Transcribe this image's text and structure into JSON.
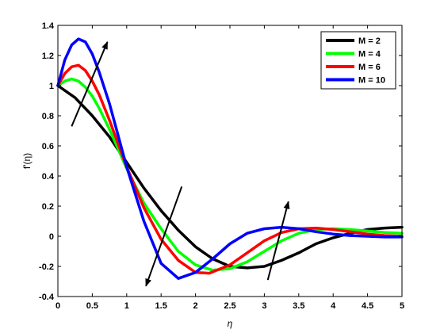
{
  "chart_data": {
    "type": "line",
    "xlabel": "η",
    "ylabel": "f'(η)",
    "xlim": [
      0,
      5
    ],
    "ylim": [
      -0.4,
      1.4
    ],
    "xticks": [
      "0",
      "0.5",
      "1",
      "1.5",
      "2",
      "2.5",
      "3",
      "3.5",
      "4",
      "4.5",
      "5"
    ],
    "yticks": [
      "-0.4",
      "-0.2",
      "0",
      "0.2",
      "0.4",
      "0.6",
      "0.8",
      "1",
      "1.2",
      "1.4"
    ],
    "legend_position": "top-right",
    "grid": false,
    "series": [
      {
        "name": "M = 2",
        "color": "#000000",
        "points": [
          [
            0,
            1.0
          ],
          [
            0.25,
            0.92
          ],
          [
            0.5,
            0.8
          ],
          [
            0.75,
            0.66
          ],
          [
            1.0,
            0.49
          ],
          [
            1.25,
            0.32
          ],
          [
            1.5,
            0.17
          ],
          [
            1.75,
            0.04
          ],
          [
            2.0,
            -0.07
          ],
          [
            2.25,
            -0.15
          ],
          [
            2.5,
            -0.2
          ],
          [
            2.75,
            -0.21
          ],
          [
            3.0,
            -0.2
          ],
          [
            3.25,
            -0.16
          ],
          [
            3.5,
            -0.11
          ],
          [
            3.75,
            -0.05
          ],
          [
            4.0,
            -0.01
          ],
          [
            4.25,
            0.02
          ],
          [
            4.5,
            0.045
          ],
          [
            4.75,
            0.055
          ],
          [
            5.0,
            0.06
          ]
        ]
      },
      {
        "name": "M = 4",
        "color": "#00ff00",
        "points": [
          [
            0,
            1.0
          ],
          [
            0.1,
            1.03
          ],
          [
            0.2,
            1.045
          ],
          [
            0.3,
            1.03
          ],
          [
            0.4,
            0.99
          ],
          [
            0.5,
            0.93
          ],
          [
            0.6,
            0.85
          ],
          [
            0.75,
            0.71
          ],
          [
            1.0,
            0.45
          ],
          [
            1.25,
            0.22
          ],
          [
            1.5,
            0.05
          ],
          [
            1.75,
            -0.1
          ],
          [
            2.0,
            -0.19
          ],
          [
            2.25,
            -0.225
          ],
          [
            2.5,
            -0.215
          ],
          [
            2.75,
            -0.17
          ],
          [
            3.0,
            -0.1
          ],
          [
            3.25,
            -0.03
          ],
          [
            3.5,
            0.02
          ],
          [
            3.75,
            0.045
          ],
          [
            4.0,
            0.05
          ],
          [
            4.25,
            0.045
          ],
          [
            4.5,
            0.035
          ],
          [
            4.75,
            0.025
          ],
          [
            5.0,
            0.02
          ]
        ]
      },
      {
        "name": "M = 6",
        "color": "#ff0000",
        "points": [
          [
            0,
            1.0
          ],
          [
            0.1,
            1.08
          ],
          [
            0.2,
            1.125
          ],
          [
            0.3,
            1.135
          ],
          [
            0.4,
            1.1
          ],
          [
            0.5,
            1.03
          ],
          [
            0.6,
            0.94
          ],
          [
            0.75,
            0.77
          ],
          [
            1.0,
            0.46
          ],
          [
            1.25,
            0.19
          ],
          [
            1.5,
            -0.02
          ],
          [
            1.75,
            -0.16
          ],
          [
            2.0,
            -0.24
          ],
          [
            2.2,
            -0.245
          ],
          [
            2.5,
            -0.19
          ],
          [
            2.75,
            -0.11
          ],
          [
            3.0,
            -0.03
          ],
          [
            3.25,
            0.025
          ],
          [
            3.5,
            0.05
          ],
          [
            3.75,
            0.055
          ],
          [
            4.0,
            0.045
          ],
          [
            4.25,
            0.03
          ],
          [
            4.5,
            0.015
          ],
          [
            4.75,
            0.005
          ],
          [
            5.0,
            0.0
          ]
        ]
      },
      {
        "name": "M = 10",
        "color": "#0000ff",
        "points": [
          [
            0,
            1.0
          ],
          [
            0.1,
            1.17
          ],
          [
            0.2,
            1.27
          ],
          [
            0.3,
            1.31
          ],
          [
            0.4,
            1.29
          ],
          [
            0.5,
            1.21
          ],
          [
            0.6,
            1.09
          ],
          [
            0.75,
            0.88
          ],
          [
            1.0,
            0.46
          ],
          [
            1.25,
            0.1
          ],
          [
            1.5,
            -0.18
          ],
          [
            1.75,
            -0.28
          ],
          [
            2.0,
            -0.24
          ],
          [
            2.25,
            -0.15
          ],
          [
            2.5,
            -0.05
          ],
          [
            2.75,
            0.02
          ],
          [
            3.0,
            0.05
          ],
          [
            3.25,
            0.06
          ],
          [
            3.5,
            0.05
          ],
          [
            3.75,
            0.03
          ],
          [
            4.0,
            0.015
          ],
          [
            4.25,
            0.005
          ],
          [
            4.5,
            0.0
          ],
          [
            4.75,
            -0.005
          ],
          [
            5.0,
            -0.005
          ]
        ]
      }
    ],
    "annotations": [
      {
        "type": "arrow",
        "from": [
          0.2,
          0.73
        ],
        "to": [
          0.72,
          1.29
        ]
      },
      {
        "type": "arrow",
        "from": [
          1.8,
          0.33
        ],
        "to": [
          1.28,
          -0.33
        ]
      },
      {
        "type": "arrow",
        "from": [
          3.05,
          -0.29
        ],
        "to": [
          3.35,
          0.23
        ]
      }
    ]
  }
}
